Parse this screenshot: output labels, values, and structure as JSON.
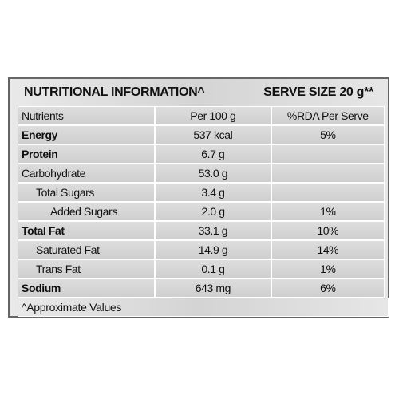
{
  "header": {
    "title": "NUTRITIONAL INFORMATION^",
    "serve_size": "SERVE SIZE 20 g**"
  },
  "table": {
    "columns": [
      "Nutrients",
      "Per 100 g",
      "%RDA Per Serve"
    ],
    "rows": [
      [
        "Energy",
        "537 kcal",
        "5%"
      ],
      [
        "Protein",
        "6.7 g",
        null
      ],
      [
        "Carbohydrate",
        "53.0 g",
        null
      ],
      [
        "Total Sugars",
        "3.4 g",
        null
      ],
      [
        "Added Sugars",
        "2.0 g",
        "1%"
      ],
      [
        "Total Fat",
        "33.1 g",
        "10%"
      ],
      [
        "Saturated Fat",
        "14.9 g",
        "14%"
      ],
      [
        "Trans Fat",
        "0.1 g",
        "1%"
      ],
      [
        "Sodium",
        "643 mg",
        "6%"
      ]
    ]
  },
  "footnote": "^Approximate Values"
}
